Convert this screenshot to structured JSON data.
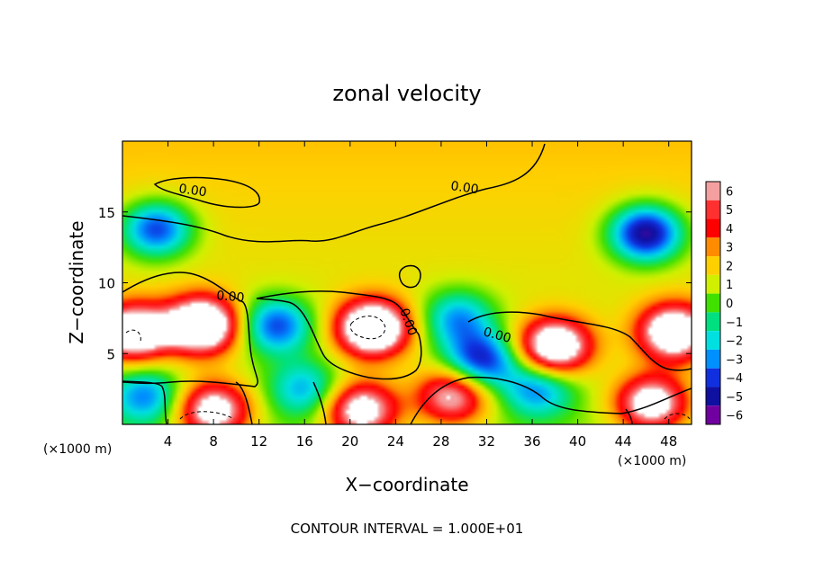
{
  "chart_data": {
    "type": "heatmap",
    "title": "zonal velocity",
    "xlabel": "X−coordinate",
    "ylabel": "Z−coordinate",
    "x_unit_left": "(×1000 m)",
    "x_unit_right": "(×1000 m)",
    "footer": "CONTOUR INTERVAL = 1.000E+01",
    "contour_label": "0.00",
    "xlim": [
      0,
      50
    ],
    "ylim": [
      0,
      20
    ],
    "x_ticks": [
      "4",
      "8",
      "12",
      "16",
      "20",
      "24",
      "28",
      "32",
      "36",
      "40",
      "44",
      "48"
    ],
    "y_ticks": [
      "5",
      "10",
      "15"
    ],
    "colorbar": {
      "labels": [
        "6",
        "5",
        "4",
        "3",
        "2",
        "1",
        "0",
        "−1",
        "−2",
        "−3",
        "−4",
        "−5",
        "−6"
      ],
      "colors": [
        "#f5a0a0",
        "#ff3030",
        "#ff0000",
        "#ff8c00",
        "#ffd000",
        "#d0f000",
        "#40e000",
        "#00e080",
        "#00e0e0",
        "#0090ff",
        "#1030e0",
        "#1010a0",
        "#7000a0"
      ]
    },
    "features": [
      {
        "x": 3.0,
        "z": 13.8,
        "v": -5.5
      },
      {
        "x": 46.0,
        "z": 13.5,
        "v": -7.0
      },
      {
        "x": 7.0,
        "z": 7.0,
        "v": 9.0
      },
      {
        "x": 22.0,
        "z": 6.8,
        "v": 9.0
      },
      {
        "x": 38.0,
        "z": 5.5,
        "v": 8.0
      },
      {
        "x": 1.0,
        "z": 6.5,
        "v": 8.0
      },
      {
        "x": 48.5,
        "z": 6.5,
        "v": 8.0
      },
      {
        "x": 13.5,
        "z": 7.0,
        "v": -5.0
      },
      {
        "x": 31.5,
        "z": 4.5,
        "v": -5.5
      },
      {
        "x": 29.5,
        "z": 7.5,
        "v": -4.0
      },
      {
        "x": 8.0,
        "z": 1.0,
        "v": 7.0
      },
      {
        "x": 21.0,
        "z": 1.0,
        "v": 7.0
      },
      {
        "x": 46.5,
        "z": 1.5,
        "v": 7.0
      },
      {
        "x": 29.0,
        "z": 2.0,
        "v": 6.0
      },
      {
        "x": 2.0,
        "z": 2.0,
        "v": -4.0
      },
      {
        "x": 36.5,
        "z": 2.5,
        "v": -4.0
      },
      {
        "x": 16.0,
        "z": 2.5,
        "v": -3.5
      }
    ]
  }
}
